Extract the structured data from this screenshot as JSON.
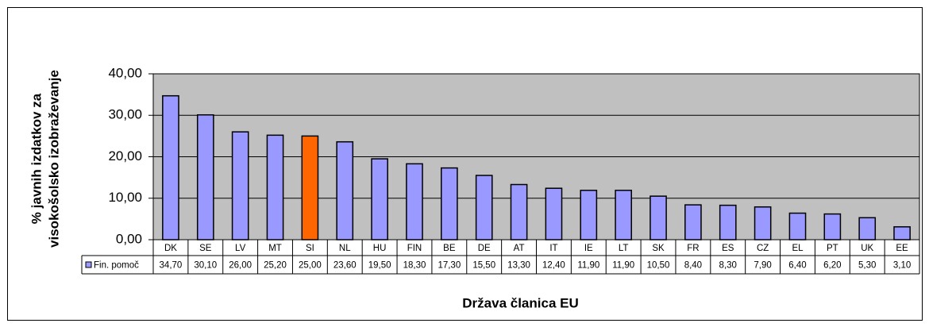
{
  "chart_data": {
    "type": "bar",
    "y_label": [
      "% javnih izdatkov za",
      "visokošolsko izobraževanje"
    ],
    "x_label": "Država članica EU",
    "categories": [
      "DK",
      "SE",
      "LV",
      "MT",
      "SI",
      "NL",
      "HU",
      "FIN",
      "BE",
      "DE",
      "AT",
      "IT",
      "IE",
      "LT",
      "SK",
      "FR",
      "ES",
      "CZ",
      "EL",
      "PT",
      "UK",
      "EE"
    ],
    "series": [
      {
        "name": "Fin. pomoč",
        "color": "#9999ff",
        "values": [
          34.7,
          30.1,
          26.0,
          25.2,
          25.0,
          23.6,
          19.5,
          18.3,
          17.3,
          15.5,
          13.3,
          12.4,
          11.9,
          11.9,
          10.5,
          8.4,
          8.3,
          7.9,
          6.4,
          6.2,
          5.3,
          3.1
        ],
        "value_labels": [
          "34,70",
          "30,10",
          "26,00",
          "25,20",
          "25,00",
          "23,60",
          "19,50",
          "18,30",
          "17,30",
          "15,50",
          "13,30",
          "12,40",
          "11,90",
          "11,90",
          "10,50",
          "8,40",
          "8,30",
          "7,90",
          "6,40",
          "6,20",
          "5,30",
          "3,10"
        ],
        "highlight": {
          "category": "SI",
          "color": "#ff6600"
        }
      }
    ],
    "ylim": [
      0,
      40
    ],
    "yticks": [
      {
        "value": 0,
        "label": "0,00"
      },
      {
        "value": 10,
        "label": "10,00"
      },
      {
        "value": 20,
        "label": "20,00"
      },
      {
        "value": 30,
        "label": "30,00"
      },
      {
        "value": 40,
        "label": "40,00"
      }
    ],
    "grid": true,
    "plot_background": "#c0c0c0",
    "data_table": true
  }
}
